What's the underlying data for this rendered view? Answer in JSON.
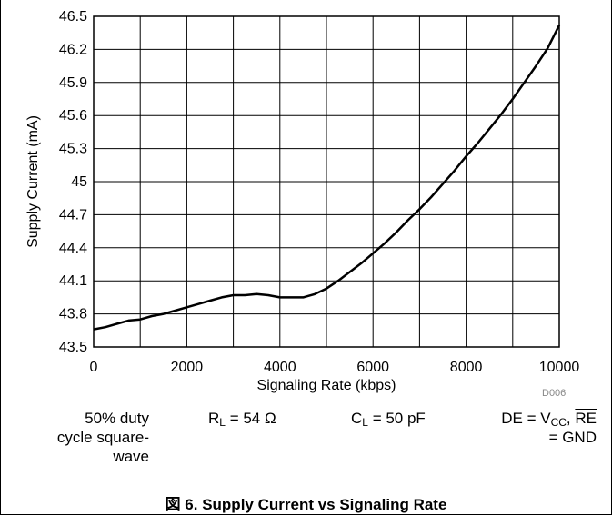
{
  "chart_data": {
    "type": "line",
    "xlabel": "Signaling Rate (kbps)",
    "ylabel": "Supply Current (mA)",
    "xlim": [
      0,
      10000
    ],
    "ylim": [
      43.5,
      46.5
    ],
    "x_ticks": [
      "0",
      "2000",
      "4000",
      "6000",
      "8000",
      "10000"
    ],
    "y_ticks": [
      "43.5",
      "43.8",
      "44.1",
      "44.4",
      "44.7",
      "45",
      "45.3",
      "45.6",
      "45.9",
      "46.2",
      "46.5"
    ],
    "grid": true,
    "series": [
      {
        "x": [
          0,
          250,
          500,
          750,
          1000,
          1250,
          1500,
          1750,
          2000,
          2250,
          2500,
          2750,
          3000,
          3250,
          3500,
          3750,
          4000,
          4250,
          4500,
          4750,
          5000,
          5250,
          5500,
          5750,
          6000,
          6250,
          6500,
          6750,
          7000,
          7250,
          7500,
          7750,
          8000,
          8250,
          8500,
          8750,
          9000,
          9250,
          9500,
          9750,
          10000
        ],
        "y": [
          43.66,
          43.68,
          43.71,
          43.74,
          43.75,
          43.78,
          43.8,
          43.83,
          43.86,
          43.89,
          43.92,
          43.95,
          43.97,
          43.97,
          43.98,
          43.97,
          43.95,
          43.95,
          43.95,
          43.98,
          44.03,
          44.1,
          44.18,
          44.26,
          44.35,
          44.44,
          44.54,
          44.65,
          44.75,
          44.86,
          44.98,
          45.1,
          45.23,
          45.35,
          45.48,
          45.61,
          45.75,
          45.9,
          46.05,
          46.21,
          46.42
        ]
      }
    ]
  },
  "figure_code": "D006",
  "conditions": {
    "duty_line1": "50% duty",
    "duty_line2": "cycle square-",
    "duty_line3": "wave",
    "rl_sym": "R",
    "rl_sub": "L",
    "rl_val": " = 54 Ω",
    "cl_sym": "C",
    "cl_sub": "L",
    "cl_val": " = 50 pF",
    "de_pre": "DE = V",
    "de_sub": "CC",
    "de_comma": ", ",
    "de_re": "RE",
    "de_line2": "= GND"
  },
  "caption": "図 6. Supply Current vs Signaling Rate"
}
